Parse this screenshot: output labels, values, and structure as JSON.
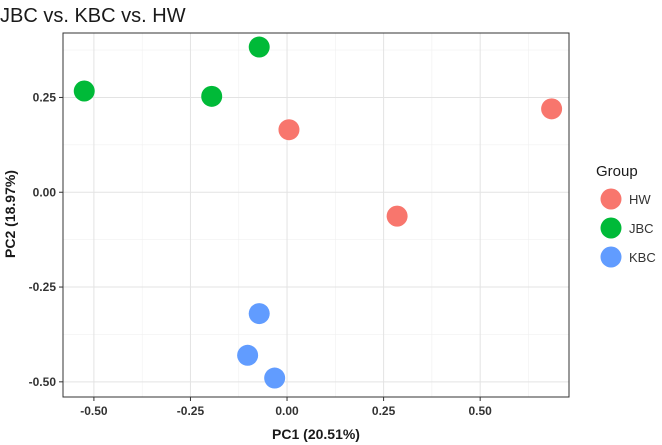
{
  "chart_data": {
    "type": "scatter",
    "title": "JBC vs. KBC vs. HW",
    "xlabel": "PC1 (20.51%)",
    "ylabel": "PC2 (18.97%)",
    "xlim": [
      -0.58,
      0.73
    ],
    "ylim": [
      -0.54,
      0.42
    ],
    "xticks": [
      -0.5,
      -0.25,
      0.0,
      0.25,
      0.5
    ],
    "xtick_labels": [
      "-0.50",
      "-0.25",
      "0.00",
      "0.25",
      "0.50"
    ],
    "yticks": [
      -0.5,
      -0.25,
      0.0,
      0.25
    ],
    "ytick_labels": [
      "-0.50",
      "-0.25",
      "0.00",
      "0.25"
    ],
    "grid": true,
    "legend": {
      "title": "Group",
      "placement": "right"
    },
    "series": [
      {
        "name": "HW",
        "color": "#F8766D",
        "points": [
          {
            "x": 0.005,
            "y": 0.165
          },
          {
            "x": 0.285,
            "y": -0.063
          },
          {
            "x": 0.685,
            "y": 0.22
          }
        ]
      },
      {
        "name": "JBC",
        "color": "#00BA38",
        "points": [
          {
            "x": -0.525,
            "y": 0.267
          },
          {
            "x": -0.195,
            "y": 0.253
          },
          {
            "x": -0.072,
            "y": 0.383
          }
        ]
      },
      {
        "name": "KBC",
        "color": "#619CFF",
        "points": [
          {
            "x": -0.072,
            "y": -0.32
          },
          {
            "x": -0.102,
            "y": -0.43
          },
          {
            "x": -0.032,
            "y": -0.49
          }
        ]
      }
    ]
  }
}
